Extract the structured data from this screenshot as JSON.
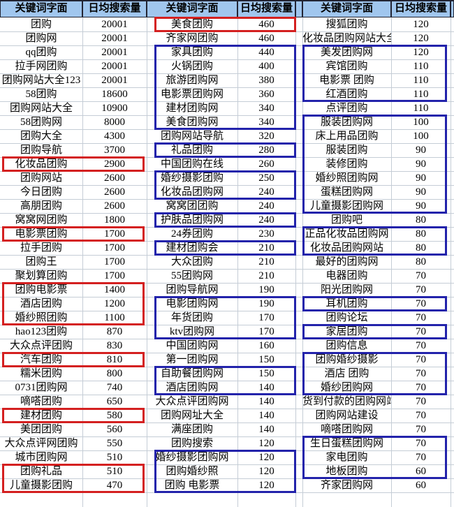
{
  "header": {
    "keyword_label": "关键词字面",
    "volume_label": "日均搜索量"
  },
  "colors": {
    "header_bg": "#a0c6ee",
    "header_border": "#222433",
    "grid_line": "#c5cdd6",
    "red_box": "#d42020",
    "blue_box": "#2323ab"
  },
  "tables": [
    {
      "rows": [
        [
          "团购",
          20001
        ],
        [
          "团购网",
          20001
        ],
        [
          "qq团购",
          20001
        ],
        [
          "拉手网团购",
          20001
        ],
        [
          "团购网站大全123",
          20001
        ],
        [
          "58团购",
          18600
        ],
        [
          "团购网站大全",
          10900
        ],
        [
          "58团购网",
          8000
        ],
        [
          "团购大全",
          4300
        ],
        [
          "团购导航",
          3700
        ],
        [
          "化妆品团购",
          2900
        ],
        [
          "团购网站",
          2600
        ],
        [
          "今日团购",
          2600
        ],
        [
          "高朋团购",
          2600
        ],
        [
          "窝窝网团购",
          1800
        ],
        [
          "电影票团购",
          1700
        ],
        [
          "拉手团购",
          1700
        ],
        [
          "团购王",
          1700
        ],
        [
          "聚划算团购",
          1700
        ],
        [
          "团购电影票",
          1400
        ],
        [
          "酒店团购",
          1200
        ],
        [
          "婚纱照团购",
          1100
        ],
        [
          "hao123团购",
          870
        ],
        [
          "大众点评团购",
          830
        ],
        [
          "汽车团购",
          810
        ],
        [
          "糯米团购",
          800
        ],
        [
          "0731团购网",
          740
        ],
        [
          "嘀嗒团购",
          650
        ],
        [
          "建材团购",
          580
        ],
        [
          "美团团购",
          560
        ],
        [
          "大众点评网团购",
          550
        ],
        [
          "城市团购网",
          510
        ],
        [
          "团购礼品",
          510
        ],
        [
          "儿童摄影团购",
          470
        ]
      ],
      "highlight_boxes": [
        {
          "from": 11,
          "to": 11,
          "color": "red"
        },
        {
          "from": 16,
          "to": 16,
          "color": "red"
        },
        {
          "from": 20,
          "to": 22,
          "color": "red"
        },
        {
          "from": 25,
          "to": 25,
          "color": "red"
        },
        {
          "from": 29,
          "to": 29,
          "color": "red"
        },
        {
          "from": 33,
          "to": 34,
          "color": "red"
        }
      ]
    },
    {
      "rows": [
        [
          "美食团购",
          460
        ],
        [
          "齐家网团购",
          460
        ],
        [
          "家具团购",
          440
        ],
        [
          "火锅团购",
          400
        ],
        [
          "旅游团购网",
          380
        ],
        [
          "电影票团购网",
          360
        ],
        [
          "建材团购网",
          340
        ],
        [
          "美食团购网",
          340
        ],
        [
          "团购网站导航",
          320
        ],
        [
          "礼品团购",
          280
        ],
        [
          "中国团购在线",
          260
        ],
        [
          "婚纱摄影团购",
          250
        ],
        [
          "化妆品团购网",
          240
        ],
        [
          "窝窝团团购",
          240
        ],
        [
          "护肤品团购网",
          240
        ],
        [
          "24券团购",
          230
        ],
        [
          "建材团购会",
          210
        ],
        [
          "大众团购",
          210
        ],
        [
          "55团购网",
          210
        ],
        [
          "团购导航网",
          190
        ],
        [
          "电影团购网",
          190
        ],
        [
          "年货团购",
          170
        ],
        [
          "ktv团购网",
          170
        ],
        [
          "中国团购网",
          160
        ],
        [
          "第一团购网",
          150
        ],
        [
          "自助餐团购网",
          150
        ],
        [
          "酒店团购网",
          140
        ],
        [
          "大众点评团购网",
          140
        ],
        [
          "团购网址大全",
          140
        ],
        [
          "满座团购",
          140
        ],
        [
          "团购搜索",
          120
        ],
        [
          "婚纱摄影团购网",
          120
        ],
        [
          "团购婚纱照",
          120
        ],
        [
          "团购 电影票",
          120
        ]
      ],
      "highlight_boxes": [
        {
          "from": 1,
          "to": 1,
          "color": "red"
        },
        {
          "from": 3,
          "to": 8,
          "color": "blue"
        },
        {
          "from": 10,
          "to": 10,
          "color": "blue"
        },
        {
          "from": 12,
          "to": 13,
          "color": "blue"
        },
        {
          "from": 15,
          "to": 15,
          "color": "blue"
        },
        {
          "from": 17,
          "to": 17,
          "color": "blue"
        },
        {
          "from": 21,
          "to": 23,
          "color": "blue"
        },
        {
          "from": 26,
          "to": 27,
          "color": "blue"
        },
        {
          "from": 32,
          "to": 34,
          "color": "blue"
        }
      ]
    },
    {
      "rows": [
        [
          "搜狐团购",
          120
        ],
        [
          "化妆品团购网站大全",
          120
        ],
        [
          "美发团购网",
          120
        ],
        [
          "宾馆团购",
          110
        ],
        [
          "电影票 团购",
          110
        ],
        [
          "红酒团购",
          110
        ],
        [
          "点评团购",
          110
        ],
        [
          "服装团购网",
          100
        ],
        [
          "床上用品团购",
          100
        ],
        [
          "服装团购",
          90
        ],
        [
          "装修团购",
          90
        ],
        [
          "婚纱照团购网",
          90
        ],
        [
          "蛋糕团购网",
          90
        ],
        [
          "儿童摄影团购网",
          90
        ],
        [
          "团购吧",
          80
        ],
        [
          "正品化妆品团购网",
          80
        ],
        [
          "化妆品团购网站",
          80
        ],
        [
          "最好的团购网",
          80
        ],
        [
          "电器团购",
          70
        ],
        [
          "阳光团购网",
          70
        ],
        [
          "耳机团购",
          70
        ],
        [
          "团购论坛",
          70
        ],
        [
          "家居团购",
          70
        ],
        [
          "团购信息",
          70
        ],
        [
          "团购婚纱摄影",
          70
        ],
        [
          "酒店 团购",
          70
        ],
        [
          "婚纱团购网",
          70
        ],
        [
          "货到付款的团购网站",
          70
        ],
        [
          "团购网站建设",
          70
        ],
        [
          "嘀嗒团购网",
          70
        ],
        [
          "生日蛋糕团购网",
          70
        ],
        [
          "家电团购",
          70
        ],
        [
          "地板团购",
          60
        ],
        [
          "齐家团购网",
          60
        ]
      ],
      "highlight_boxes": [
        {
          "from": 3,
          "to": 6,
          "color": "blue"
        },
        {
          "from": 8,
          "to": 14,
          "color": "blue"
        },
        {
          "from": 16,
          "to": 17,
          "color": "blue"
        },
        {
          "from": 21,
          "to": 21,
          "color": "blue"
        },
        {
          "from": 23,
          "to": 23,
          "color": "blue"
        },
        {
          "from": 25,
          "to": 27,
          "color": "blue"
        },
        {
          "from": 31,
          "to": 33,
          "color": "blue"
        }
      ]
    }
  ]
}
